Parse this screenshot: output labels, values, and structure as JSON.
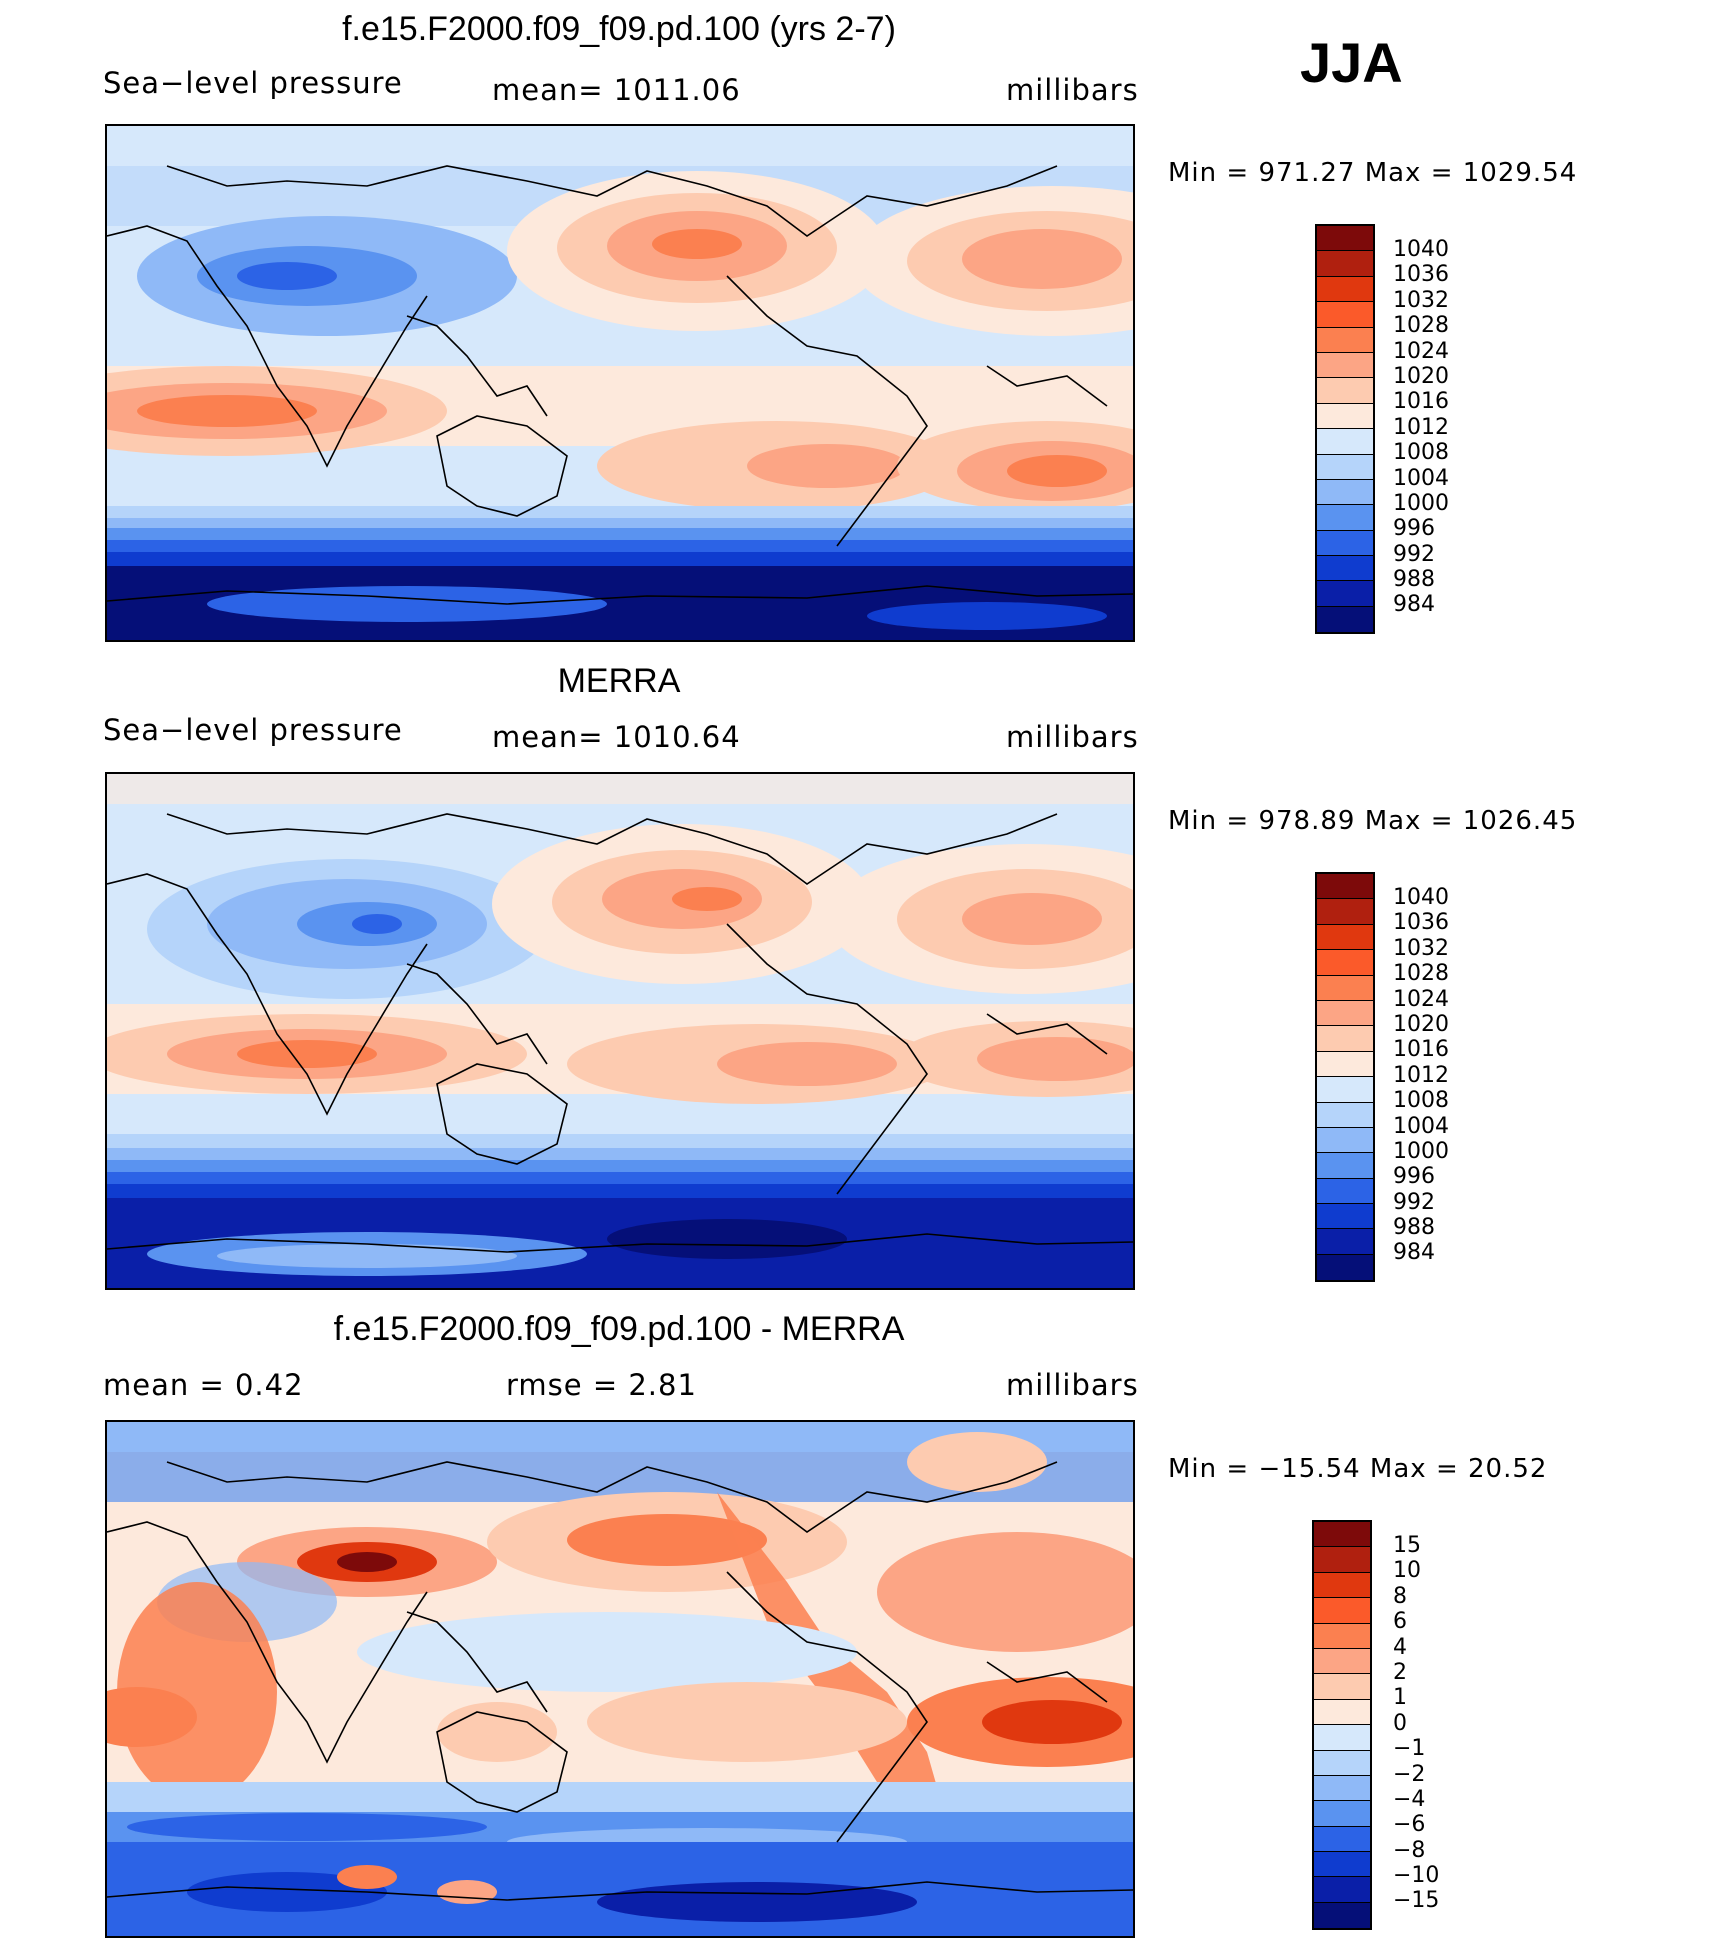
{
  "season": "JJA",
  "panels": [
    {
      "title": "f.e15.F2000.f09_f09.pd.100 (yrs 2-7)",
      "left": "Sea−level pressure",
      "center": "mean=  1011.06",
      "right": "millibars",
      "minmax": "Min  =  971.27  Max  =  1029.54",
      "colorbar": [
        "1040",
        "1036",
        "1032",
        "1028",
        "1024",
        "1020",
        "1016",
        "1012",
        "1008",
        "1004",
        "1000",
        "996",
        "992",
        "988",
        "984"
      ],
      "type": "field"
    },
    {
      "title": "MERRA",
      "left": "Sea−level pressure",
      "center": "mean=  1010.64",
      "right": "millibars",
      "minmax": "Min  =  978.89  Max  =  1026.45",
      "colorbar": [
        "1040",
        "1036",
        "1032",
        "1028",
        "1024",
        "1020",
        "1016",
        "1012",
        "1008",
        "1004",
        "1000",
        "996",
        "992",
        "988",
        "984"
      ],
      "type": "field"
    },
    {
      "title": "f.e15.F2000.f09_f09.pd.100 - MERRA",
      "left": "mean  =     0.42",
      "center": "rmse  =     2.81",
      "right": "millibars",
      "minmax": "Min  =  −15.54  Max  =    20.52",
      "colorbar": [
        "15",
        "10",
        "8",
        "6",
        "4",
        "2",
        "1",
        "0",
        "−1",
        "−2",
        "−4",
        "−6",
        "−8",
        "−10",
        "−15"
      ],
      "type": "diff"
    }
  ],
  "colors": {
    "scale": [
      "#7d0a0a",
      "#b0200f",
      "#e0380f",
      "#fb5a2a",
      "#fb8050",
      "#fca585",
      "#fdcbb0",
      "#fde9dc",
      "#d6e8fb",
      "#b5d4fa",
      "#8fb9f7",
      "#5a93f0",
      "#2c63e6",
      "#0f3ccf",
      "#0a1fa8",
      "#050f78"
    ]
  }
}
